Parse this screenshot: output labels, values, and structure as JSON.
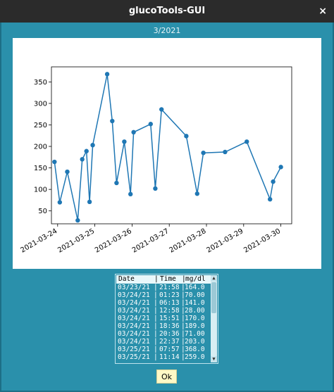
{
  "window": {
    "title": "glucoTools-GUI",
    "close_glyph": "×"
  },
  "month_label": "3/2021",
  "chart_data": {
    "type": "line",
    "title": "",
    "xlabel": "",
    "ylabel": "",
    "color": "#1f77b4",
    "ylim": [
      20,
      385
    ],
    "yticks": [
      50,
      100,
      150,
      200,
      250,
      300,
      350
    ],
    "xticks": [
      "2021-03-24",
      "2021-03-25",
      "2021-03-26",
      "2021-03-27",
      "2021-03-28",
      "2021-03-29",
      "2021-03-30"
    ],
    "xlim": [
      "2021-03-23 20:00",
      "2021-03-30 07:00"
    ],
    "series": [
      {
        "name": "",
        "x": [
          "2021-03-23 21:58",
          "2021-03-24 01:23",
          "2021-03-24 06:13",
          "2021-03-24 12:58",
          "2021-03-24 15:51",
          "2021-03-24 18:36",
          "2021-03-24 20:36",
          "2021-03-24 22:37",
          "2021-03-25 07:57",
          "2021-03-25 11:14",
          "2021-03-25 14:00",
          "2021-03-25 19:00",
          "2021-03-25 23:00",
          "2021-03-26 01:00",
          "2021-03-26 12:00",
          "2021-03-26 15:00",
          "2021-03-26 19:00",
          "2021-03-27 11:00",
          "2021-03-27 18:00",
          "2021-03-27 22:00",
          "2021-03-28 12:00",
          "2021-03-29 02:00",
          "2021-03-29 17:00",
          "2021-03-29 19:00",
          "2021-03-30 00:00"
        ],
        "y": [
          164,
          70,
          141,
          28,
          170,
          189,
          71,
          203,
          368,
          259,
          115,
          211,
          89,
          233,
          252,
          102,
          286,
          224,
          90,
          185,
          187,
          211,
          77,
          118,
          152
        ]
      }
    ]
  },
  "table": {
    "headers": [
      "Date",
      "Time",
      "mg/dl"
    ],
    "separator": "|",
    "rows": [
      [
        "03/23/21",
        "21:58",
        "164.0"
      ],
      [
        "03/24/21",
        "01:23",
        "70.00"
      ],
      [
        "03/24/21",
        "06:13",
        "141.0"
      ],
      [
        "03/24/21",
        "12:58",
        "28.00"
      ],
      [
        "03/24/21",
        "15:51",
        "170.0"
      ],
      [
        "03/24/21",
        "18:36",
        "189.0"
      ],
      [
        "03/24/21",
        "20:36",
        "71.00"
      ],
      [
        "03/24/21",
        "22:37",
        "203.0"
      ],
      [
        "03/25/21",
        "07:57",
        "368.0"
      ],
      [
        "03/25/21",
        "11:14",
        "259.0"
      ]
    ],
    "scroll_up_glyph": "▲",
    "scroll_down_glyph": "▼"
  },
  "ok_button": {
    "label": "Ok"
  }
}
